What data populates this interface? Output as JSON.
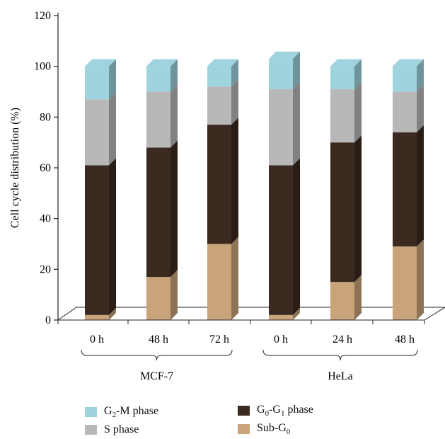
{
  "chart_data": {
    "type": "bar",
    "stacked": true,
    "ylabel": "Cell cycle distribution (%)",
    "ylim": [
      0,
      120
    ],
    "yticks": [
      0,
      20,
      40,
      60,
      80,
      100,
      120
    ],
    "categories": [
      "0 h",
      "48 h",
      "72 h",
      "0 h",
      "24 h",
      "48 h"
    ],
    "groups": [
      {
        "label": "MCF-7",
        "categories": [
          "0 h",
          "48 h",
          "72 h"
        ]
      },
      {
        "label": "HeLa",
        "categories": [
          "0 h",
          "24 h",
          "48 h"
        ]
      }
    ],
    "series": [
      {
        "name": "Sub-G0",
        "values": [
          2,
          17,
          30,
          2,
          15,
          29
        ]
      },
      {
        "name": "G0-G1 phase",
        "values": [
          59,
          51,
          47,
          59,
          55,
          45
        ]
      },
      {
        "name": "S phase",
        "values": [
          26,
          22,
          15,
          30,
          21,
          16
        ]
      },
      {
        "name": "G2-M phase",
        "values": [
          13,
          10,
          8,
          12,
          9,
          10
        ]
      }
    ],
    "colors": {
      "Sub-G0": "#c9a47a",
      "G0-G1 phase": "#3b2a20",
      "S phase": "#b8b8b8",
      "G2-M phase": "#9fd3de"
    },
    "legend": {
      "placement": "bottom",
      "items": [
        {
          "main": "G",
          "sub1": "2",
          "rest": "-M phase"
        },
        {
          "main": "G",
          "sub1": "0",
          "mid": "-G",
          "sub2": "1",
          "rest": " phase"
        },
        {
          "main": "S phase"
        },
        {
          "main": "Sub-G",
          "sub1": "0"
        }
      ]
    }
  }
}
